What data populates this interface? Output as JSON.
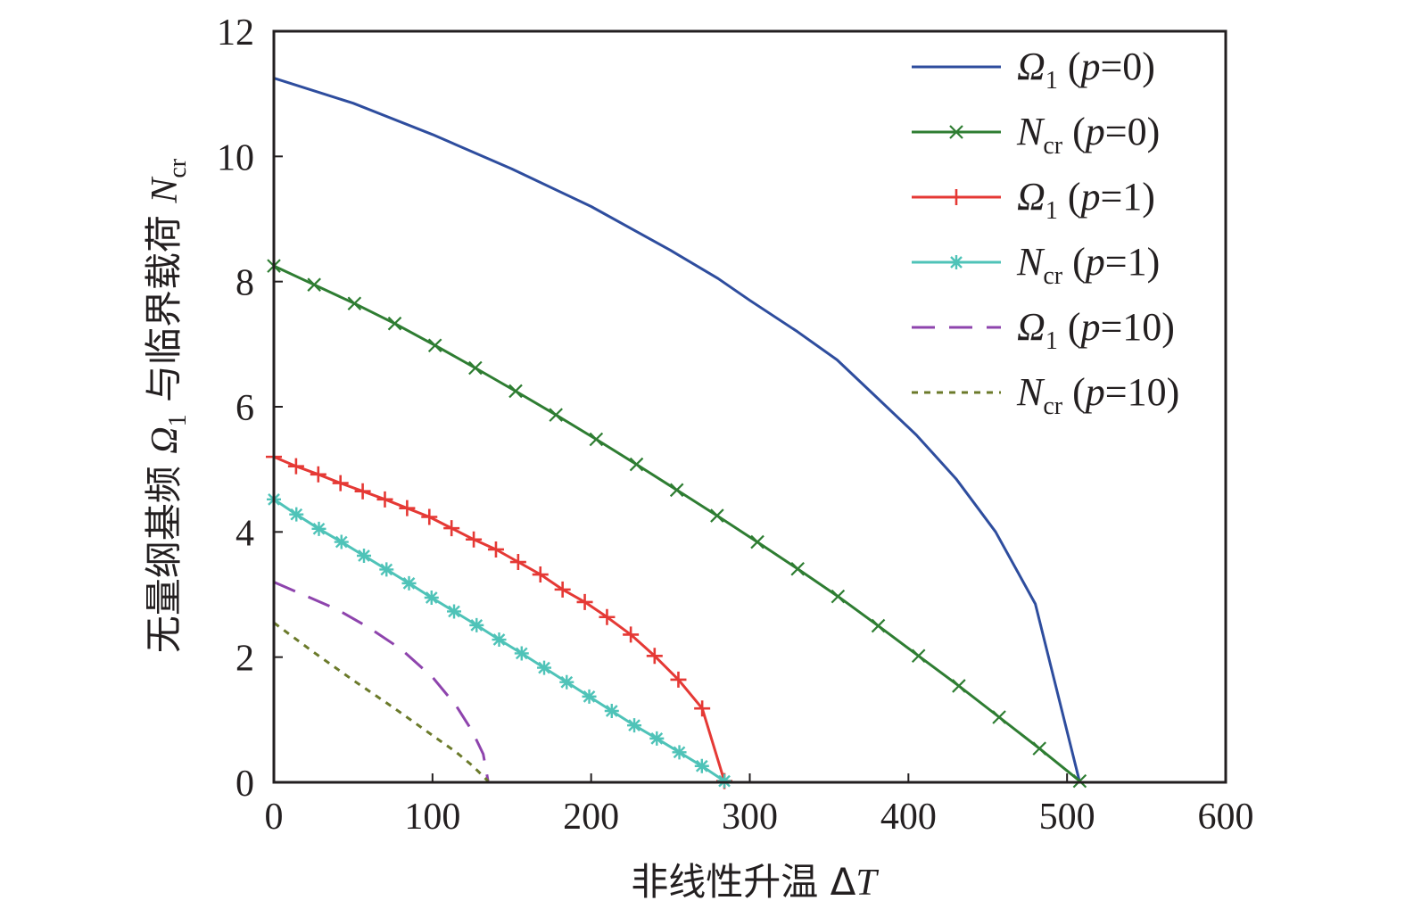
{
  "chart_data": {
    "type": "line",
    "xlabel": {
      "prefix": "非线性升温 Δ",
      "var": "T"
    },
    "ylabel": {
      "p1": "无量纲基频 ",
      "omega": "Ω",
      "omega_sub": "1",
      "p2": " 与临界载荷 ",
      "N": "N",
      "N_sub": "cr"
    },
    "xlim": [
      0,
      600
    ],
    "ylim": [
      0,
      12
    ],
    "x_ticks": [
      0,
      100,
      200,
      300,
      400,
      500,
      600
    ],
    "y_ticks": [
      0,
      2,
      4,
      6,
      8,
      10,
      12
    ],
    "x_tick_labels": [
      "0",
      "100",
      "200",
      "300",
      "400",
      "500",
      "600"
    ],
    "y_tick_labels": [
      "0",
      "2",
      "4",
      "6",
      "8",
      "10",
      "12"
    ],
    "legend_position": "top-right",
    "series": [
      {
        "name": "Ω1 (p=0)",
        "legend": {
          "sym": "Ω",
          "sub": "1",
          "open": " (",
          "p": "p",
          "rest": "=0)"
        },
        "color": "#2e4d9e",
        "dash": "",
        "marker": "none",
        "x": [
          0,
          50,
          100,
          150,
          200,
          250,
          280,
          300,
          330,
          355,
          380,
          405,
          430,
          455,
          480,
          508
        ],
        "y": [
          11.25,
          10.85,
          10.35,
          9.8,
          9.2,
          8.5,
          8.05,
          7.7,
          7.2,
          6.75,
          6.15,
          5.55,
          4.85,
          4.0,
          2.85,
          0.0
        ]
      },
      {
        "name": "Ncr (p=0)",
        "legend": {
          "sym": "N",
          "sub": "cr",
          "open": " (",
          "p": "p",
          "rest": "=0)"
        },
        "color": "#2e7d32",
        "dash": "",
        "marker": "x",
        "x": [
          0,
          25.4,
          50.8,
          76.2,
          101.6,
          127,
          152.4,
          177.8,
          203.2,
          228.6,
          254,
          279.4,
          304.8,
          330.2,
          355.6,
          381,
          406.4,
          431.8,
          457.2,
          482.6,
          508
        ],
        "y": [
          8.25,
          7.95,
          7.65,
          7.33,
          6.98,
          6.62,
          6.25,
          5.87,
          5.48,
          5.08,
          4.67,
          4.26,
          3.84,
          3.41,
          2.97,
          2.5,
          2.02,
          1.54,
          1.04,
          0.54,
          0.02
        ]
      },
      {
        "name": "Ω1 (p=1)",
        "legend": {
          "sym": "Ω",
          "sub": "1",
          "open": " (",
          "p": "p",
          "rest": "=1)"
        },
        "color": "#e53935",
        "dash": "",
        "marker": "plus",
        "x": [
          0,
          14,
          28,
          42,
          56,
          70,
          84,
          98,
          112,
          126,
          140,
          154,
          168,
          182,
          196,
          210,
          225,
          240,
          255,
          270,
          284
        ],
        "y": [
          5.2,
          5.05,
          4.92,
          4.78,
          4.65,
          4.52,
          4.38,
          4.24,
          4.06,
          3.88,
          3.72,
          3.52,
          3.32,
          3.08,
          2.88,
          2.64,
          2.36,
          2.02,
          1.64,
          1.18,
          0.02
        ]
      },
      {
        "name": "Ncr (p=1)",
        "legend": {
          "sym": "N",
          "sub": "cr",
          "open": " (",
          "p": "p",
          "rest": "=1)"
        },
        "color": "#4fc3b8",
        "dash": "",
        "marker": "asterisk",
        "x": [
          0,
          14.2,
          28.4,
          42.6,
          56.8,
          71,
          85.2,
          99.4,
          113.6,
          127.8,
          142,
          156.2,
          170.4,
          184.6,
          198.8,
          213,
          227.2,
          241.4,
          255.6,
          269.8,
          284
        ],
        "y": [
          4.52,
          4.28,
          4.05,
          3.84,
          3.62,
          3.4,
          3.18,
          2.95,
          2.73,
          2.51,
          2.28,
          2.06,
          1.83,
          1.6,
          1.37,
          1.14,
          0.91,
          0.7,
          0.48,
          0.26,
          0.02
        ]
      },
      {
        "name": "Ω1 (p=10)",
        "legend": {
          "sym": "Ω",
          "sub": "1",
          "open": " (",
          "p": "p",
          "rest": "=10)"
        },
        "color": "#8e44ad",
        "dash": "26 16",
        "marker": "none",
        "x": [
          0,
          20,
          40,
          60,
          80,
          100,
          115,
          125,
          132,
          135
        ],
        "y": [
          3.2,
          2.98,
          2.76,
          2.47,
          2.13,
          1.68,
          1.22,
          0.82,
          0.45,
          0.02
        ]
      },
      {
        "name": "Ncr (p=10)",
        "legend": {
          "sym": "N",
          "sub": "cr",
          "open": " (",
          "p": "p",
          "rest": "=10)"
        },
        "color": "#6b7a2a",
        "dash": "7 7",
        "marker": "none",
        "x": [
          0,
          25,
          50,
          75,
          100,
          115,
          125,
          135
        ],
        "y": [
          2.55,
          2.08,
          1.63,
          1.2,
          0.75,
          0.48,
          0.27,
          0.02
        ]
      }
    ]
  }
}
